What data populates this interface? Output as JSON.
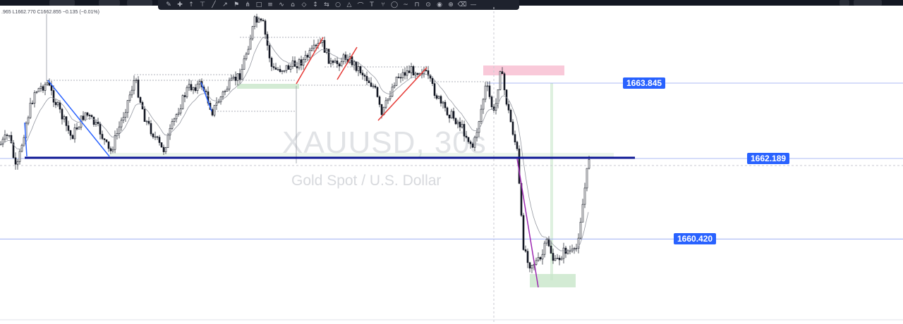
{
  "toolbar": {
    "tools": [
      "brush-icon",
      "crosshair-icon",
      "trend-line-icon",
      "horizontal-line-icon",
      "ray-icon",
      "arrow-icon",
      "flag-icon",
      "fork-icon",
      "rectangle-icon",
      "fib-icon",
      "gann-icon",
      "pattern-icon",
      "note-icon",
      "ruler-icon",
      "measure-icon",
      "circle-icon",
      "triangle-icon",
      "curve-icon",
      "text-icon",
      "pitchfork-icon",
      "ellipse-icon",
      "path-icon",
      "magnet-icon",
      "lock-icon",
      "eye-icon",
      "target-icon",
      "trash-icon",
      "more-icon"
    ],
    "glyphs": [
      "✎",
      "✚",
      "↑",
      "⊤",
      "╱",
      "↗",
      "⚑",
      "⋔",
      "□",
      "≡",
      "∿",
      "⌂",
      "◇",
      "↕",
      "⇆",
      "○",
      "△",
      "⌒",
      "T",
      "⑂",
      "◯",
      "~",
      "⊓",
      "⊙",
      "◉",
      "⊕",
      "⌫",
      "—"
    ]
  },
  "legend": {
    "ohlc_text": ".965  L1662.770  C1662.855  −0.135 (−0.01%)"
  },
  "watermark": {
    "symbol": "XAUUSD, 30s",
    "description": "Gold Spot / U.S. Dollar"
  },
  "price_labels": [
    {
      "name": "price-label-1663845",
      "price": 1663.845,
      "text": "1663.845",
      "color": "#2962ff"
    },
    {
      "name": "price-label-1662189",
      "price": 1662.189,
      "text": "1662.189",
      "color": "#2962ff"
    },
    {
      "name": "price-label-1660420",
      "price": 1660.42,
      "text": "1660.420",
      "color": "#2962ff"
    }
  ],
  "colors": {
    "up": "#131722",
    "down": "#131722",
    "support_line": "#0d1794",
    "trend_blue": "#2962ff",
    "trend_red": "#e53935",
    "trend_purple": "#9c27b0",
    "supply_zone": "#f8bbd0",
    "demand_zone": "#c8e6c9"
  }
}
